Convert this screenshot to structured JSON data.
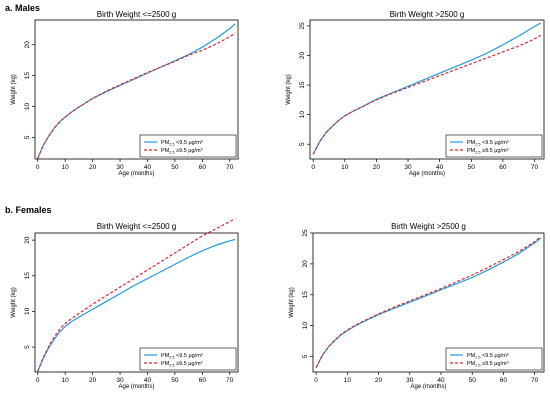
{
  "figure": {
    "sections": [
      {
        "label": "a. Males"
      },
      {
        "label": "b. Females"
      }
    ]
  },
  "legend": {
    "entries": [
      {
        "prefix": "PM",
        "subscript": "2.5",
        "suffix": " <9.5 μg/m³",
        "color": "#1E9BE0",
        "dashed": false
      },
      {
        "prefix": "PM",
        "subscript": "2.5",
        "suffix": " ≥9.5 μg/m³",
        "color": "#E0242B",
        "dashed": true
      }
    ]
  },
  "chart_data": [
    {
      "type": "line",
      "section": "a. Males",
      "title": "Birth Weight <=2500 g",
      "xlabel": "Age (months)",
      "ylabel": "Weight (kg)",
      "xlim": [
        -1,
        73
      ],
      "ylim": [
        1.5,
        24
      ],
      "xticks": [
        0,
        10,
        20,
        30,
        40,
        50,
        60,
        70
      ],
      "yticks": [
        5,
        10,
        15,
        20
      ],
      "legend_position": "bottom-right",
      "grid": false,
      "x": [
        0,
        2,
        4,
        6,
        8,
        10,
        12,
        15,
        20,
        25,
        30,
        35,
        40,
        45,
        50,
        55,
        60,
        65,
        70,
        72
      ],
      "series": [
        {
          "name": "PM2.5 <9.5 μg/m³",
          "values": [
            1.6,
            3.7,
            5.2,
            6.5,
            7.5,
            8.3,
            9.0,
            9.9,
            11.3,
            12.4,
            13.4,
            14.4,
            15.4,
            16.4,
            17.4,
            18.4,
            19.6,
            21.0,
            22.6,
            23.4
          ]
        },
        {
          "name": "PM2.5 ≥9.5 μg/m³",
          "values": [
            1.6,
            3.7,
            5.2,
            6.5,
            7.5,
            8.3,
            9.0,
            9.9,
            11.3,
            12.5,
            13.5,
            14.5,
            15.5,
            16.4,
            17.3,
            18.3,
            19.1,
            20.1,
            21.3,
            21.9
          ]
        }
      ]
    },
    {
      "type": "line",
      "section": "a. Males",
      "title": "Birth Weight >2500 g",
      "xlabel": "Age (months)",
      "ylabel": "Weight (kg)",
      "xlim": [
        -1,
        73
      ],
      "ylim": [
        2.5,
        26
      ],
      "xticks": [
        0,
        10,
        20,
        30,
        40,
        50,
        60,
        70
      ],
      "yticks": [
        5,
        10,
        15,
        20,
        25
      ],
      "legend_position": "bottom-right",
      "grid": false,
      "x": [
        0,
        2,
        4,
        6,
        8,
        10,
        12,
        15,
        20,
        25,
        30,
        35,
        40,
        45,
        50,
        55,
        60,
        65,
        70,
        72
      ],
      "series": [
        {
          "name": "PM2.5 <9.5 μg/m³",
          "values": [
            3.3,
            5.4,
            6.9,
            8.0,
            9.0,
            9.8,
            10.4,
            11.2,
            12.6,
            13.7,
            14.8,
            15.9,
            17.0,
            18.1,
            19.2,
            20.4,
            21.8,
            23.3,
            24.9,
            25.5
          ]
        },
        {
          "name": "PM2.5 ≥9.5 μg/m³",
          "values": [
            3.3,
            5.4,
            6.9,
            8.0,
            9.0,
            9.8,
            10.4,
            11.2,
            12.5,
            13.6,
            14.6,
            15.6,
            16.6,
            17.6,
            18.6,
            19.6,
            20.6,
            21.6,
            22.8,
            23.4
          ]
        }
      ]
    },
    {
      "type": "line",
      "section": "b. Females",
      "title": "Birth Weight <=2500 g",
      "xlabel": "Age (months)",
      "ylabel": "Weight (kg)",
      "xlim": [
        -1,
        73
      ],
      "ylim": [
        1.5,
        21
      ],
      "xticks": [
        0,
        10,
        20,
        30,
        40,
        50,
        60,
        70
      ],
      "yticks": [
        5,
        10,
        15,
        20
      ],
      "legend_position": "bottom-right",
      "grid": false,
      "x": [
        0,
        2,
        4,
        6,
        8,
        10,
        12,
        15,
        20,
        25,
        30,
        35,
        40,
        45,
        50,
        55,
        60,
        65,
        70,
        72
      ],
      "series": [
        {
          "name": "PM2.5 <9.5 μg/m³",
          "values": [
            1.6,
            3.4,
            4.9,
            6.1,
            7.1,
            7.9,
            8.5,
            9.2,
            10.3,
            11.4,
            12.5,
            13.6,
            14.6,
            15.6,
            16.6,
            17.6,
            18.5,
            19.3,
            19.9,
            20.1
          ]
        },
        {
          "name": "PM2.5 ≥9.5 μg/m³",
          "values": [
            1.6,
            3.5,
            5.1,
            6.4,
            7.5,
            8.3,
            8.9,
            9.7,
            11.0,
            12.2,
            13.4,
            14.6,
            15.8,
            17.0,
            18.2,
            19.4,
            20.6,
            21.6,
            22.6,
            23.0
          ]
        }
      ]
    },
    {
      "type": "line",
      "section": "b. Females",
      "title": "Birth Weight >2500 g",
      "xlabel": "Age (months)",
      "ylabel": "Weight (kg)",
      "xlim": [
        -1,
        73
      ],
      "ylim": [
        2.5,
        25
      ],
      "xticks": [
        0,
        10,
        20,
        30,
        40,
        50,
        60,
        70
      ],
      "yticks": [
        5,
        10,
        15,
        20,
        25
      ],
      "legend_position": "bottom-right",
      "grid": false,
      "x": [
        0,
        2,
        4,
        6,
        8,
        10,
        12,
        15,
        20,
        25,
        30,
        35,
        40,
        45,
        50,
        55,
        60,
        65,
        70,
        72
      ],
      "series": [
        {
          "name": "PM2.5 <9.5 μg/m³",
          "values": [
            3.2,
            5.2,
            6.6,
            7.6,
            8.5,
            9.2,
            9.8,
            10.6,
            11.8,
            12.8,
            13.8,
            14.8,
            15.8,
            16.8,
            17.8,
            19.0,
            20.3,
            21.7,
            23.4,
            24.2
          ]
        },
        {
          "name": "PM2.5 ≥9.5 μg/m³",
          "values": [
            3.2,
            5.2,
            6.6,
            7.7,
            8.6,
            9.3,
            9.9,
            10.7,
            11.9,
            13.0,
            14.0,
            15.0,
            16.0,
            17.1,
            18.2,
            19.4,
            20.7,
            22.0,
            23.6,
            24.4
          ]
        }
      ]
    }
  ]
}
